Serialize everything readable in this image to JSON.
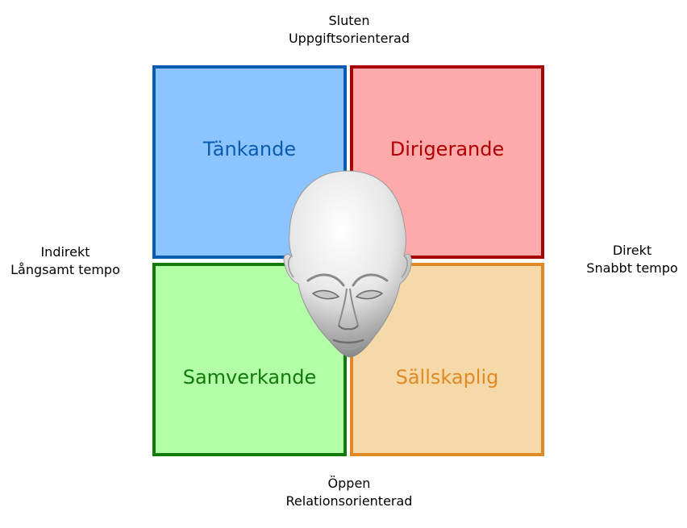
{
  "axes": {
    "top": [
      "Sluten",
      "Uppgiftsorienterad"
    ],
    "bottom": [
      "Öppen",
      "Relationsorienterad"
    ],
    "left": [
      "Indirekt",
      "Långsamt tempo"
    ],
    "right": [
      "Direkt",
      "Snabbt tempo"
    ]
  },
  "quadrants": {
    "top_left": {
      "label": "Tänkande",
      "fill": "#8cc4ff",
      "border": "#0a5cb0",
      "text": "#0a5cb0"
    },
    "top_right": {
      "label": "Dirigerande",
      "fill": "#ffaaaa",
      "border": "#a80000",
      "text": "#b00000"
    },
    "bottom_left": {
      "label": "Samverkande",
      "fill": "#b3ffa8",
      "border": "#117a0a",
      "text": "#117a0a"
    },
    "bottom_right": {
      "label": "Sällskaplig",
      "fill": "#f5d9a8",
      "border": "#e08a26",
      "text": "#e08a26"
    }
  },
  "center_icon": "head-icon"
}
